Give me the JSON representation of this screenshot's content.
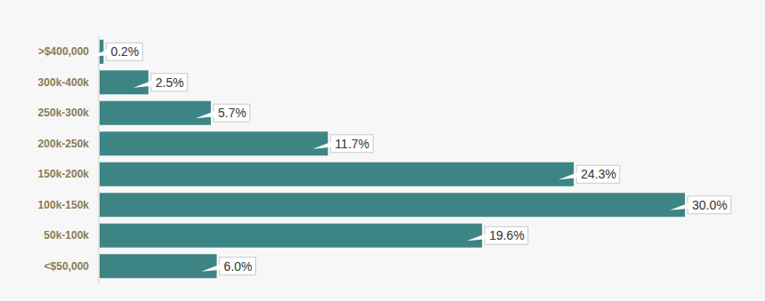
{
  "chart_data": {
    "type": "bar",
    "orientation": "horizontal",
    "categories": [
      ">$400,000",
      "300k-400k",
      "250k-300k",
      "200k-250k",
      "150k-200k",
      "100k-150k",
      "50k-100k",
      "<$50,000"
    ],
    "values": [
      0.2,
      2.5,
      5.7,
      11.7,
      24.3,
      30.0,
      19.6,
      6.0
    ],
    "value_labels": [
      "0.2%",
      "2.5%",
      "5.7%",
      "11.7%",
      "24.3%",
      "30.0%",
      "19.6%",
      "6.0%"
    ],
    "color": "#3d8585",
    "xlim": [
      0,
      30
    ],
    "data_labels": true,
    "tick_labels": "y",
    "grid": false
  }
}
